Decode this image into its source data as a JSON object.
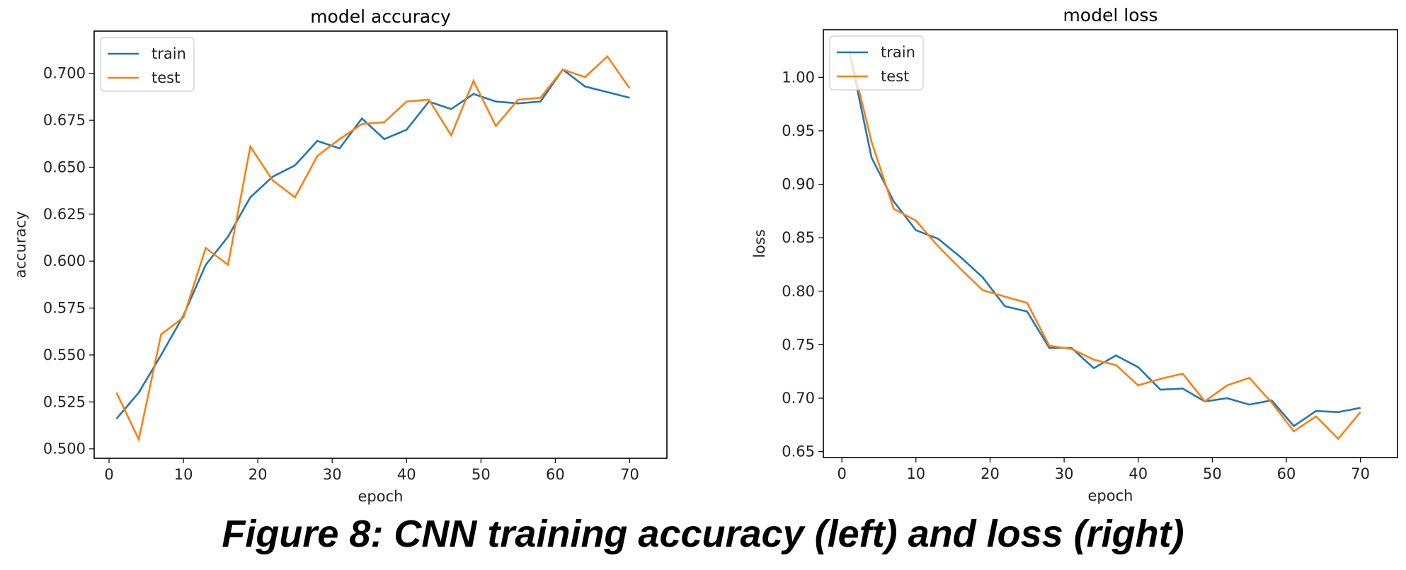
{
  "caption": "Figure 8: CNN training accuracy (left) and loss (right)",
  "colors": {
    "train": "#1f77b4",
    "test": "#ff7f0e"
  },
  "chart_data": [
    {
      "type": "line",
      "title": "model accuracy",
      "xlabel": "epoch",
      "ylabel": "accuracy",
      "xlim": [
        -2,
        75
      ],
      "ylim": [
        0.495,
        0.7225
      ],
      "xticks": [
        0,
        10,
        20,
        30,
        40,
        50,
        60,
        70
      ],
      "yticks": [
        0.5,
        0.525,
        0.55,
        0.575,
        0.6,
        0.625,
        0.65,
        0.675,
        0.7
      ],
      "ytick_labels": [
        "0.500",
        "0.525",
        "0.550",
        "0.575",
        "0.600",
        "0.625",
        "0.650",
        "0.675",
        "0.700"
      ],
      "legend_loc": "upper left",
      "x": [
        1,
        4,
        7,
        10,
        13,
        16,
        19,
        22,
        25,
        28,
        31,
        34,
        37,
        40,
        43,
        46,
        49,
        52,
        55,
        58,
        61,
        64,
        67,
        70
      ],
      "series": [
        {
          "name": "train",
          "values": [
            0.516,
            0.53,
            0.55,
            0.571,
            0.598,
            0.613,
            0.634,
            0.645,
            0.651,
            0.664,
            0.66,
            0.676,
            0.665,
            0.67,
            0.685,
            0.681,
            0.689,
            0.685,
            0.684,
            0.685,
            0.702,
            0.693,
            0.69,
            0.687
          ]
        },
        {
          "name": "test",
          "values": [
            0.53,
            0.505,
            0.561,
            0.57,
            0.607,
            0.598,
            0.661,
            0.643,
            0.634,
            0.656,
            0.665,
            0.673,
            0.674,
            0.685,
            0.686,
            0.667,
            0.696,
            0.672,
            0.686,
            0.687,
            0.702,
            0.698,
            0.709,
            0.692
          ]
        }
      ]
    },
    {
      "type": "line",
      "title": "model loss",
      "xlabel": "epoch",
      "ylabel": "loss",
      "xlim": [
        -2.5,
        75
      ],
      "ylim": [
        0.6445,
        1.0445
      ],
      "xticks": [
        0,
        10,
        20,
        30,
        40,
        50,
        60,
        70
      ],
      "yticks": [
        0.65,
        0.7,
        0.75,
        0.8,
        0.85,
        0.9,
        0.95,
        1.0
      ],
      "ytick_labels": [
        "0.65",
        "0.70",
        "0.75",
        "0.80",
        "0.85",
        "0.90",
        "0.95",
        "1.00"
      ],
      "legend_loc": "upper left",
      "x": [
        1,
        4,
        7,
        10,
        13,
        16,
        19,
        22,
        25,
        28,
        31,
        34,
        37,
        40,
        43,
        46,
        49,
        52,
        55,
        58,
        61,
        64,
        67,
        70
      ],
      "series": [
        {
          "name": "train",
          "values": [
            1.025,
            0.925,
            0.884,
            0.857,
            0.849,
            0.832,
            0.813,
            0.786,
            0.781,
            0.747,
            0.747,
            0.728,
            0.74,
            0.729,
            0.708,
            0.709,
            0.697,
            0.7,
            0.694,
            0.698,
            0.674,
            0.688,
            0.687,
            0.691
          ]
        },
        {
          "name": "test",
          "values": [
            1.025,
            0.94,
            0.877,
            0.866,
            0.842,
            0.821,
            0.801,
            0.795,
            0.789,
            0.749,
            0.746,
            0.736,
            0.731,
            0.712,
            0.718,
            0.723,
            0.697,
            0.712,
            0.719,
            0.696,
            0.669,
            0.683,
            0.662,
            0.687
          ]
        }
      ]
    }
  ]
}
